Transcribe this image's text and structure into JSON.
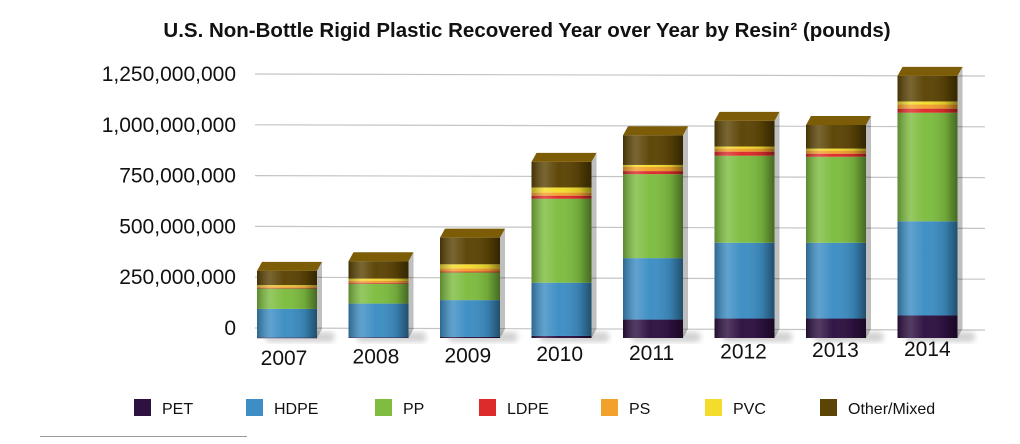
{
  "chart_data": {
    "type": "bar",
    "stacked": true,
    "title": "U.S. Non-Bottle Rigid Plastic Recovered Year over Year by Resin² (pounds)",
    "xlabel": "",
    "ylabel": "",
    "categories": [
      "2007",
      "2008",
      "2009",
      "2010",
      "2011",
      "2012",
      "2013",
      "2014"
    ],
    "ylim": [
      0,
      1250000000
    ],
    "yticks": [
      0,
      250000000,
      500000000,
      750000000,
      1000000000,
      1250000000
    ],
    "ytick_labels": [
      "0",
      "250,000,000",
      "500,000,000",
      "750,000,000",
      "1,000,000,000",
      "1,250,000,000"
    ],
    "grid": true,
    "legend": "bottom",
    "series": [
      {
        "name": "PET",
        "color": "#2e1141",
        "values": [
          2000000,
          3000000,
          5000000,
          10000000,
          90000000,
          95000000,
          95000000,
          110000000
        ]
      },
      {
        "name": "HDPE",
        "color": "#3d8ec4",
        "values": [
          140000000,
          165000000,
          180000000,
          260000000,
          300000000,
          370000000,
          370000000,
          460000000
        ]
      },
      {
        "name": "PP",
        "color": "#7ebd40",
        "values": [
          100000000,
          97000000,
          135000000,
          410000000,
          410000000,
          425000000,
          420000000,
          530000000
        ]
      },
      {
        "name": "LDPE",
        "color": "#dd2a2a",
        "values": [
          3000000,
          5000000,
          5000000,
          15000000,
          15000000,
          20000000,
          15000000,
          20000000
        ]
      },
      {
        "name": "PS",
        "color": "#f2a12d",
        "values": [
          8000000,
          10000000,
          15000000,
          15000000,
          20000000,
          15000000,
          15000000,
          20000000
        ]
      },
      {
        "name": "PVC",
        "color": "#f4dc2d",
        "values": [
          5000000,
          10000000,
          20000000,
          25000000,
          10000000,
          10000000,
          10000000,
          15000000
        ]
      },
      {
        "name": "Other/Mixed",
        "color": "#5c4405",
        "values": [
          70000000,
          85000000,
          130000000,
          125000000,
          145000000,
          125000000,
          115000000,
          125000000
        ]
      }
    ]
  }
}
